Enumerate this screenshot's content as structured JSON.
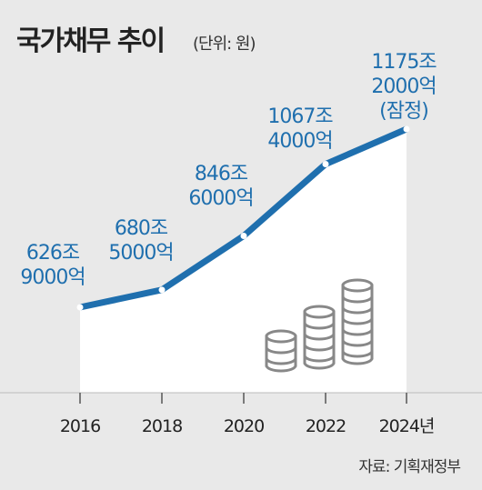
{
  "title": "국가채무 추이",
  "unit": "(단위: 원)",
  "source": "자료: 기획재정부",
  "colors": {
    "line": "#1f6fae",
    "label": "#1f6fae",
    "background": "#e9e9e9",
    "area": "#ffffff",
    "coins": "#888888"
  },
  "chart_data": {
    "type": "area",
    "title": "국가채무 추이",
    "xlabel": "",
    "ylabel": "",
    "x": [
      "2016",
      "2018",
      "2020",
      "2022",
      "2024년"
    ],
    "values": [
      626.9,
      680.5,
      846.6,
      1067.4,
      1175.2
    ],
    "value_unit": "조 원",
    "labels": [
      [
        "626조",
        "9000억"
      ],
      [
        "680조",
        "5000억"
      ],
      [
        "846조",
        "6000억"
      ],
      [
        "1067조",
        "4000억"
      ],
      [
        "1175조",
        "2000억",
        "(잠정)"
      ]
    ],
    "grid": false,
    "legend": "none"
  }
}
